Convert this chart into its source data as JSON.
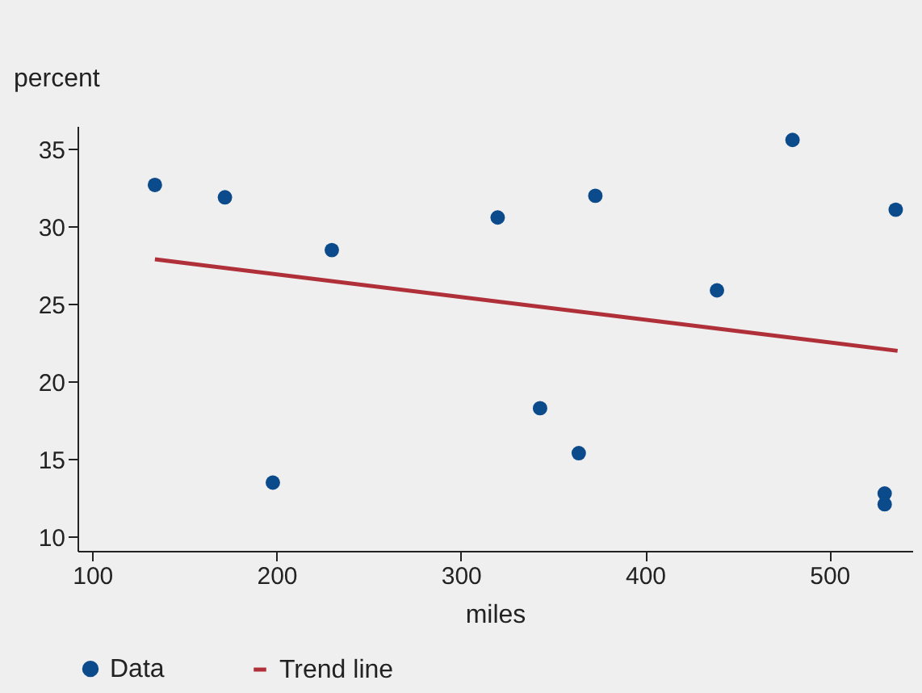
{
  "chart_data": {
    "type": "scatter",
    "xlabel": "miles",
    "ylabel": "percent",
    "xlim": [
      92,
      545
    ],
    "ylim": [
      9.1,
      36.5
    ],
    "xticks": [
      100,
      200,
      300,
      400,
      500
    ],
    "yticks": [
      10,
      15,
      20,
      25,
      30,
      35
    ],
    "grid": false,
    "legend": "bottom",
    "marker": "circle",
    "line_style": "solid",
    "series": [
      {
        "name": "Data",
        "color": "#0b4a8b",
        "x": [
          134,
          172,
          198,
          230,
          320,
          343,
          364,
          373,
          439,
          480,
          530,
          530,
          536
        ],
        "values": [
          32.7,
          31.9,
          13.5,
          28.5,
          30.6,
          18.3,
          15.4,
          32.0,
          25.9,
          35.6,
          12.1,
          12.8,
          31.1
        ]
      },
      {
        "name": "Trend line",
        "type": "line",
        "marker": "none",
        "color": "#b0303a",
        "x": [
          134,
          537
        ],
        "values": [
          27.9,
          22.0
        ]
      }
    ]
  }
}
